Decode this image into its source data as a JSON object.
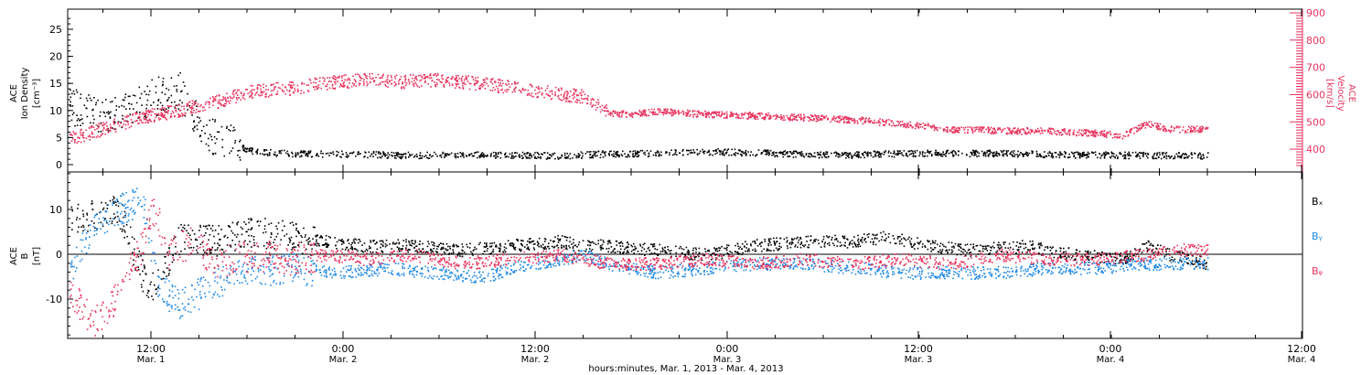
{
  "chart_data": [
    {
      "type": "scatter",
      "panel": "plasma",
      "ylabel_left": [
        "ACE",
        "Ion Density",
        "[cm⁻³]"
      ],
      "ylabel_right": [
        "ACE",
        "Velocity",
        "[km/s]"
      ],
      "left_ticks": [
        "0",
        "5",
        "10",
        "15",
        "20",
        "25"
      ],
      "right_ticks": [
        "400",
        "500",
        "600",
        "700",
        "800",
        "900"
      ],
      "ylim_left": [
        -1.5,
        29
      ],
      "ylim_right": [
        330,
        910
      ],
      "colors": {
        "density": "#000000",
        "velocity": "#e8345e"
      },
      "series": [
        {
          "name": "Ion Density",
          "axis": "left",
          "color": "#000000",
          "points": [
            [
              0,
              11
            ],
            [
              3,
              9
            ],
            [
              6,
              12
            ],
            [
              9,
              14
            ],
            [
              11,
              6
            ],
            [
              13,
              4
            ],
            [
              15,
              2.6
            ],
            [
              17,
              2.2
            ],
            [
              20,
              2.1
            ],
            [
              24,
              2.0
            ],
            [
              28,
              1.8
            ],
            [
              32,
              1.9
            ],
            [
              36,
              1.9
            ],
            [
              40,
              1.7
            ],
            [
              44,
              2.1
            ],
            [
              48,
              2.2
            ],
            [
              52,
              2.5
            ],
            [
              56,
              2.3
            ],
            [
              60,
              2.0
            ],
            [
              64,
              1.9
            ],
            [
              68,
              2.2
            ],
            [
              72,
              2.2
            ],
            [
              76,
              2.2
            ],
            [
              80,
              2.0
            ],
            [
              84,
              1.9
            ],
            [
              88,
              1.8
            ],
            [
              90,
              1.8
            ],
            [
              93,
              1.7
            ]
          ]
        },
        {
          "name": "Velocity",
          "axis": "right",
          "color": "#e8345e",
          "points": [
            [
              0,
              440
            ],
            [
              3,
              480
            ],
            [
              6,
              520
            ],
            [
              9,
              545
            ],
            [
              12,
              575
            ],
            [
              15,
              615
            ],
            [
              18,
              625
            ],
            [
              21,
              645
            ],
            [
              24,
              655
            ],
            [
              27,
              650
            ],
            [
              30,
              655
            ],
            [
              33,
              645
            ],
            [
              36,
              630
            ],
            [
              40,
              605
            ],
            [
              42,
              595
            ],
            [
              44,
              535
            ],
            [
              46,
              530
            ],
            [
              48,
              540
            ],
            [
              52,
              530
            ],
            [
              56,
              525
            ],
            [
              60,
              518
            ],
            [
              64,
              510
            ],
            [
              68,
              495
            ],
            [
              72,
              475
            ],
            [
              76,
              470
            ],
            [
              80,
              468
            ],
            [
              84,
              460
            ],
            [
              86,
              452
            ],
            [
              88,
              495
            ],
            [
              90,
              475
            ],
            [
              93,
              475
            ]
          ]
        }
      ]
    },
    {
      "type": "scatter",
      "panel": "magnetic-field",
      "ylabel_left": [
        "ACE",
        "B",
        "[nT]"
      ],
      "left_ticks": [
        "-10",
        "0",
        "10"
      ],
      "ylim": [
        -19,
        19
      ],
      "colors": {
        "Bx": "#000000",
        "By": "#1e88e5",
        "Bz": "#e8345e"
      },
      "series": [
        {
          "name": "Bₓ",
          "color": "#000000",
          "points": [
            [
              0,
              8
            ],
            [
              2,
              9
            ],
            [
              4,
              10
            ],
            [
              6,
              -5
            ],
            [
              7,
              -8
            ],
            [
              9,
              4
            ],
            [
              12,
              3
            ],
            [
              15,
              5
            ],
            [
              18,
              4
            ],
            [
              21,
              3
            ],
            [
              24,
              2
            ],
            [
              28,
              2
            ],
            [
              32,
              1
            ],
            [
              36,
              2
            ],
            [
              40,
              3
            ],
            [
              42,
              2
            ],
            [
              44,
              2
            ],
            [
              48,
              1
            ],
            [
              52,
              0
            ],
            [
              56,
              2
            ],
            [
              60,
              3
            ],
            [
              64,
              3
            ],
            [
              67,
              4
            ],
            [
              70,
              2
            ],
            [
              74,
              1
            ],
            [
              78,
              2
            ],
            [
              82,
              0
            ],
            [
              86,
              -1
            ],
            [
              88,
              2
            ],
            [
              90,
              0
            ],
            [
              93,
              -2
            ]
          ]
        },
        {
          "name": "Bᵧ",
          "color": "#1e88e5",
          "points": [
            [
              0,
              -3
            ],
            [
              2,
              6
            ],
            [
              4,
              10
            ],
            [
              6,
              12
            ],
            [
              7,
              -5
            ],
            [
              8,
              -9
            ],
            [
              9,
              -11
            ],
            [
              11,
              -8
            ],
            [
              14,
              -4
            ],
            [
              18,
              -3
            ],
            [
              22,
              -4
            ],
            [
              26,
              -3
            ],
            [
              30,
              -4
            ],
            [
              34,
              -5
            ],
            [
              36,
              -3
            ],
            [
              40,
              -1
            ],
            [
              42,
              0
            ],
            [
              44,
              -2
            ],
            [
              48,
              -4
            ],
            [
              52,
              -3
            ],
            [
              56,
              -2
            ],
            [
              60,
              -2
            ],
            [
              64,
              -3
            ],
            [
              68,
              -4
            ],
            [
              72,
              -4
            ],
            [
              76,
              -4
            ],
            [
              80,
              -3
            ],
            [
              84,
              -3
            ],
            [
              88,
              -2
            ],
            [
              90,
              -2
            ],
            [
              93,
              -2
            ]
          ]
        },
        {
          "name": "Bᵩ",
          "color": "#e8345e",
          "points": [
            [
              0,
              -8
            ],
            [
              1,
              -12
            ],
            [
              2,
              -15
            ],
            [
              3,
              -12
            ],
            [
              4,
              -9
            ],
            [
              5,
              -2
            ],
            [
              6,
              2
            ],
            [
              6.5,
              8
            ],
            [
              7,
              10
            ],
            [
              8,
              0
            ],
            [
              10,
              3
            ],
            [
              12,
              -2
            ],
            [
              15,
              0
            ],
            [
              18,
              -1
            ],
            [
              21,
              0
            ],
            [
              24,
              -1
            ],
            [
              28,
              0
            ],
            [
              32,
              -2
            ],
            [
              36,
              -1
            ],
            [
              40,
              0
            ],
            [
              44,
              -2
            ],
            [
              48,
              -2
            ],
            [
              52,
              -1
            ],
            [
              56,
              -2
            ],
            [
              60,
              -1
            ],
            [
              64,
              -2
            ],
            [
              68,
              -1
            ],
            [
              72,
              -2
            ],
            [
              76,
              0
            ],
            [
              80,
              -1
            ],
            [
              84,
              -1
            ],
            [
              88,
              0
            ],
            [
              90,
              1
            ],
            [
              93,
              1
            ]
          ]
        }
      ]
    }
  ],
  "legend": [
    {
      "label": "Bₓ",
      "color": "#000000"
    },
    {
      "label": "Bᵧ",
      "color": "#1e88e5"
    },
    {
      "label": "Bᵩ",
      "color": "#e8345e"
    }
  ],
  "x_axis": {
    "ticks": [
      {
        "time": "12:00",
        "date": "Mar. 1"
      },
      {
        "time": "0:00",
        "date": "Mar. 2"
      },
      {
        "time": "12:00",
        "date": "Mar. 2"
      },
      {
        "time": "0:00",
        "date": "Mar. 3"
      },
      {
        "time": "12:00",
        "date": "Mar. 3"
      },
      {
        "time": "0:00",
        "date": "Mar. 4"
      },
      {
        "time": "12:00",
        "date": "Mar. 4"
      }
    ],
    "label": "hours:minutes, Mar.  1, 2013 - Mar.  4, 2013"
  }
}
